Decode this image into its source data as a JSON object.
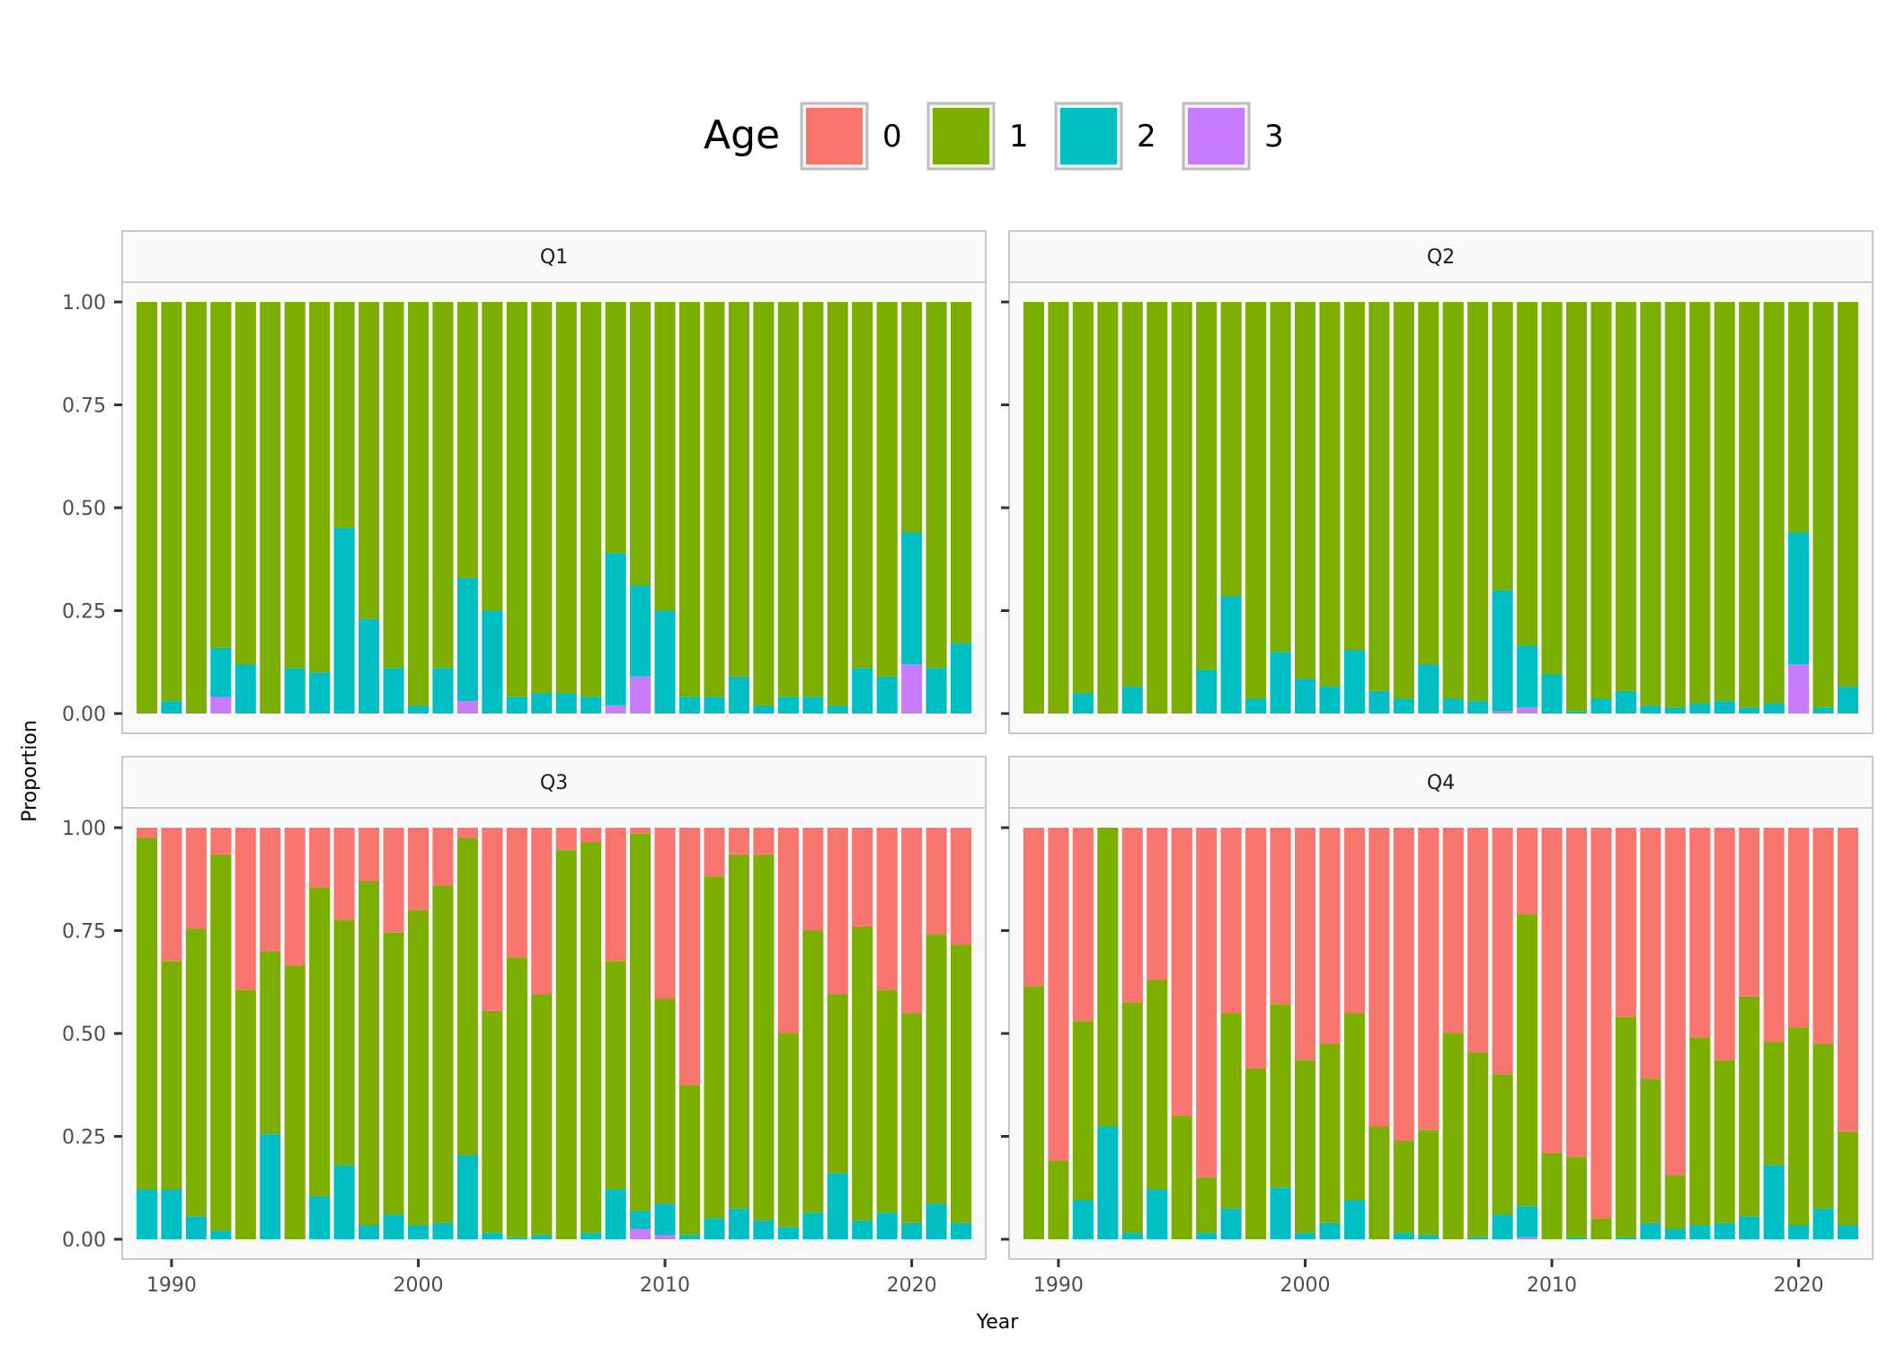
{
  "chart_data": {
    "type": "bar",
    "stacked": true,
    "position": "fill",
    "xlabel": "Year",
    "ylabel": "Proportion",
    "xlim": [
      1988,
      2023
    ],
    "ylim": [
      0,
      1
    ],
    "x_ticks": [
      1990,
      2000,
      2010,
      2020
    ],
    "y_ticks": [
      0.0,
      0.25,
      0.5,
      0.75,
      1.0
    ],
    "y_tick_labels": [
      "0.00",
      "0.25",
      "0.50",
      "0.75",
      "1.00"
    ],
    "legend": {
      "title": "Age",
      "position": "top",
      "entries": [
        {
          "label": "0",
          "color": "#F8766D"
        },
        {
          "label": "1",
          "color": "#7CAE00"
        },
        {
          "label": "2",
          "color": "#00BFC4"
        },
        {
          "label": "3",
          "color": "#C77CFF"
        }
      ]
    },
    "years": [
      1989,
      1990,
      1991,
      1992,
      1993,
      1994,
      1995,
      1996,
      1997,
      1998,
      1999,
      2000,
      2001,
      2002,
      2003,
      2004,
      2005,
      2006,
      2007,
      2008,
      2009,
      2010,
      2011,
      2012,
      2013,
      2014,
      2015,
      2016,
      2017,
      2018,
      2019,
      2020,
      2021,
      2022
    ],
    "panels": [
      {
        "name": "Q1",
        "series": [
          {
            "name": "3",
            "values": [
              0,
              0,
              0,
              0.04,
              0,
              0,
              0,
              0,
              0,
              0,
              0,
              0,
              0,
              0.03,
              0,
              0,
              0,
              0,
              0,
              0.02,
              0.09,
              0,
              0,
              0,
              0,
              0,
              0,
              0,
              0,
              0,
              0,
              0.12,
              0,
              0
            ]
          },
          {
            "name": "2",
            "values": [
              0,
              0.03,
              0,
              0.12,
              0.12,
              0,
              0.11,
              0.1,
              0.45,
              0.23,
              0.11,
              0.02,
              0.11,
              0.3,
              0.25,
              0.04,
              0.05,
              0.05,
              0.04,
              0.37,
              0.22,
              0.25,
              0.04,
              0.04,
              0.09,
              0.02,
              0.04,
              0.04,
              0.02,
              0.11,
              0.09,
              0.32,
              0.11,
              0.17
            ]
          },
          {
            "name": "1",
            "values": [
              1,
              0.97,
              1,
              0.84,
              0.88,
              1,
              0.89,
              0.9,
              0.55,
              0.77,
              0.89,
              0.98,
              0.89,
              0.67,
              0.75,
              0.96,
              0.95,
              0.95,
              0.96,
              0.61,
              0.69,
              0.75,
              0.96,
              0.96,
              0.91,
              0.98,
              0.96,
              0.96,
              0.98,
              0.89,
              0.91,
              0.56,
              0.89,
              0.83
            ]
          },
          {
            "name": "0",
            "values": [
              0,
              0,
              0,
              0,
              0,
              0,
              0,
              0,
              0,
              0,
              0,
              0,
              0,
              0,
              0,
              0,
              0,
              0,
              0,
              0,
              0,
              0,
              0,
              0,
              0,
              0,
              0,
              0,
              0,
              0,
              0,
              0,
              0,
              0
            ]
          }
        ]
      },
      {
        "name": "Q2",
        "series": [
          {
            "name": "3",
            "values": [
              0,
              0,
              0,
              0,
              0,
              0,
              0,
              0,
              0,
              0,
              0,
              0,
              0,
              0,
              0,
              0,
              0,
              0,
              0,
              0.005,
              0.015,
              0,
              0,
              0,
              0,
              0,
              0,
              0,
              0,
              0,
              0,
              0.12,
              0,
              0
            ]
          },
          {
            "name": "2",
            "values": [
              0,
              0,
              0.05,
              0,
              0.065,
              0,
              0,
              0.105,
              0.285,
              0.035,
              0.15,
              0.085,
              0.065,
              0.155,
              0.055,
              0.035,
              0.12,
              0.035,
              0.03,
              0.295,
              0.15,
              0.095,
              0.005,
              0.035,
              0.055,
              0.02,
              0.015,
              0.025,
              0.03,
              0.015,
              0.025,
              0.32,
              0.015,
              0.065
            ]
          },
          {
            "name": "1",
            "values": [
              1,
              1,
              0.95,
              1,
              0.935,
              1,
              1,
              0.895,
              0.715,
              0.965,
              0.85,
              0.915,
              0.935,
              0.845,
              0.945,
              0.965,
              0.88,
              0.965,
              0.97,
              0.7,
              0.835,
              0.905,
              0.995,
              0.965,
              0.945,
              0.98,
              0.985,
              0.975,
              0.97,
              0.985,
              0.975,
              0.56,
              0.985,
              0.935
            ]
          },
          {
            "name": "0",
            "values": [
              0,
              0,
              0,
              0,
              0,
              0,
              0,
              0,
              0,
              0,
              0,
              0,
              0,
              0,
              0,
              0,
              0,
              0,
              0,
              0,
              0,
              0,
              0,
              0,
              0,
              0,
              0,
              0,
              0,
              0,
              0,
              0,
              0,
              0
            ]
          }
        ]
      },
      {
        "name": "Q3",
        "series": [
          {
            "name": "3",
            "values": [
              0,
              0,
              0,
              0,
              0,
              0,
              0,
              0,
              0,
              0,
              0,
              0,
              0,
              0,
              0,
              0,
              0,
              0,
              0,
              0,
              0.025,
              0.01,
              0,
              0,
              0,
              0,
              0,
              0,
              0,
              0,
              0,
              0,
              0,
              0
            ]
          },
          {
            "name": "2",
            "values": [
              0.12,
              0.12,
              0.055,
              0.02,
              0,
              0.255,
              0,
              0.105,
              0.18,
              0.035,
              0.06,
              0.035,
              0.04,
              0.205,
              0.015,
              0.005,
              0.01,
              0,
              0.015,
              0.12,
              0.045,
              0.075,
              0.01,
              0.05,
              0.075,
              0.045,
              0.03,
              0.065,
              0.16,
              0.045,
              0.065,
              0.04,
              0.085,
              0.04
            ]
          },
          {
            "name": "1",
            "values": [
              0.855,
              0.555,
              0.7,
              0.915,
              0.605,
              0.445,
              0.665,
              0.75,
              0.595,
              0.835,
              0.685,
              0.765,
              0.82,
              0.77,
              0.54,
              0.68,
              0.585,
              0.945,
              0.95,
              0.555,
              0.915,
              0.5,
              0.365,
              0.83,
              0.86,
              0.89,
              0.47,
              0.685,
              0.435,
              0.715,
              0.54,
              0.51,
              0.655,
              0.675
            ]
          },
          {
            "name": "0",
            "values": [
              0.025,
              0.325,
              0.245,
              0.065,
              0.395,
              0.3,
              0.335,
              0.145,
              0.225,
              0.13,
              0.255,
              0.2,
              0.14,
              0.025,
              0.445,
              0.315,
              0.405,
              0.055,
              0.035,
              0.325,
              0.015,
              0.415,
              0.625,
              0.12,
              0.065,
              0.065,
              0.5,
              0.25,
              0.405,
              0.24,
              0.395,
              0.45,
              0.26,
              0.285
            ]
          }
        ]
      },
      {
        "name": "Q4",
        "series": [
          {
            "name": "3",
            "values": [
              0,
              0,
              0,
              0,
              0,
              0,
              0,
              0,
              0,
              0,
              0,
              0,
              0,
              0,
              0,
              0,
              0,
              0,
              0,
              0,
              0.005,
              0,
              0,
              0,
              0,
              0,
              0,
              0,
              0,
              0,
              0,
              0,
              0,
              0
            ]
          },
          {
            "name": "2",
            "values": [
              0,
              0,
              0.095,
              0.275,
              0.015,
              0.12,
              0,
              0.015,
              0.075,
              0,
              0.125,
              0.015,
              0.04,
              0.095,
              0,
              0.015,
              0.01,
              0,
              0.005,
              0.06,
              0.075,
              0,
              0.005,
              0,
              0.005,
              0.04,
              0.025,
              0.035,
              0.04,
              0.055,
              0.18,
              0.035,
              0.075,
              0.035
            ]
          },
          {
            "name": "1",
            "values": [
              0.615,
              0.19,
              0.435,
              0.725,
              0.56,
              0.51,
              0.3,
              0.135,
              0.475,
              0.415,
              0.445,
              0.42,
              0.435,
              0.455,
              0.275,
              0.225,
              0.255,
              0.5,
              0.45,
              0.34,
              0.71,
              0.21,
              0.195,
              0.05,
              0.535,
              0.35,
              0.13,
              0.455,
              0.395,
              0.535,
              0.3,
              0.48,
              0.4,
              0.225
            ]
          },
          {
            "name": "0",
            "values": [
              0.385,
              0.81,
              0.47,
              0,
              0.425,
              0.37,
              0.7,
              0.85,
              0.45,
              0.585,
              0.43,
              0.565,
              0.525,
              0.45,
              0.725,
              0.76,
              0.735,
              0.5,
              0.545,
              0.6,
              0.21,
              0.79,
              0.8,
              0.95,
              0.46,
              0.61,
              0.845,
              0.51,
              0.565,
              0.41,
              0.52,
              0.485,
              0.525,
              0.74
            ]
          }
        ]
      }
    ]
  }
}
